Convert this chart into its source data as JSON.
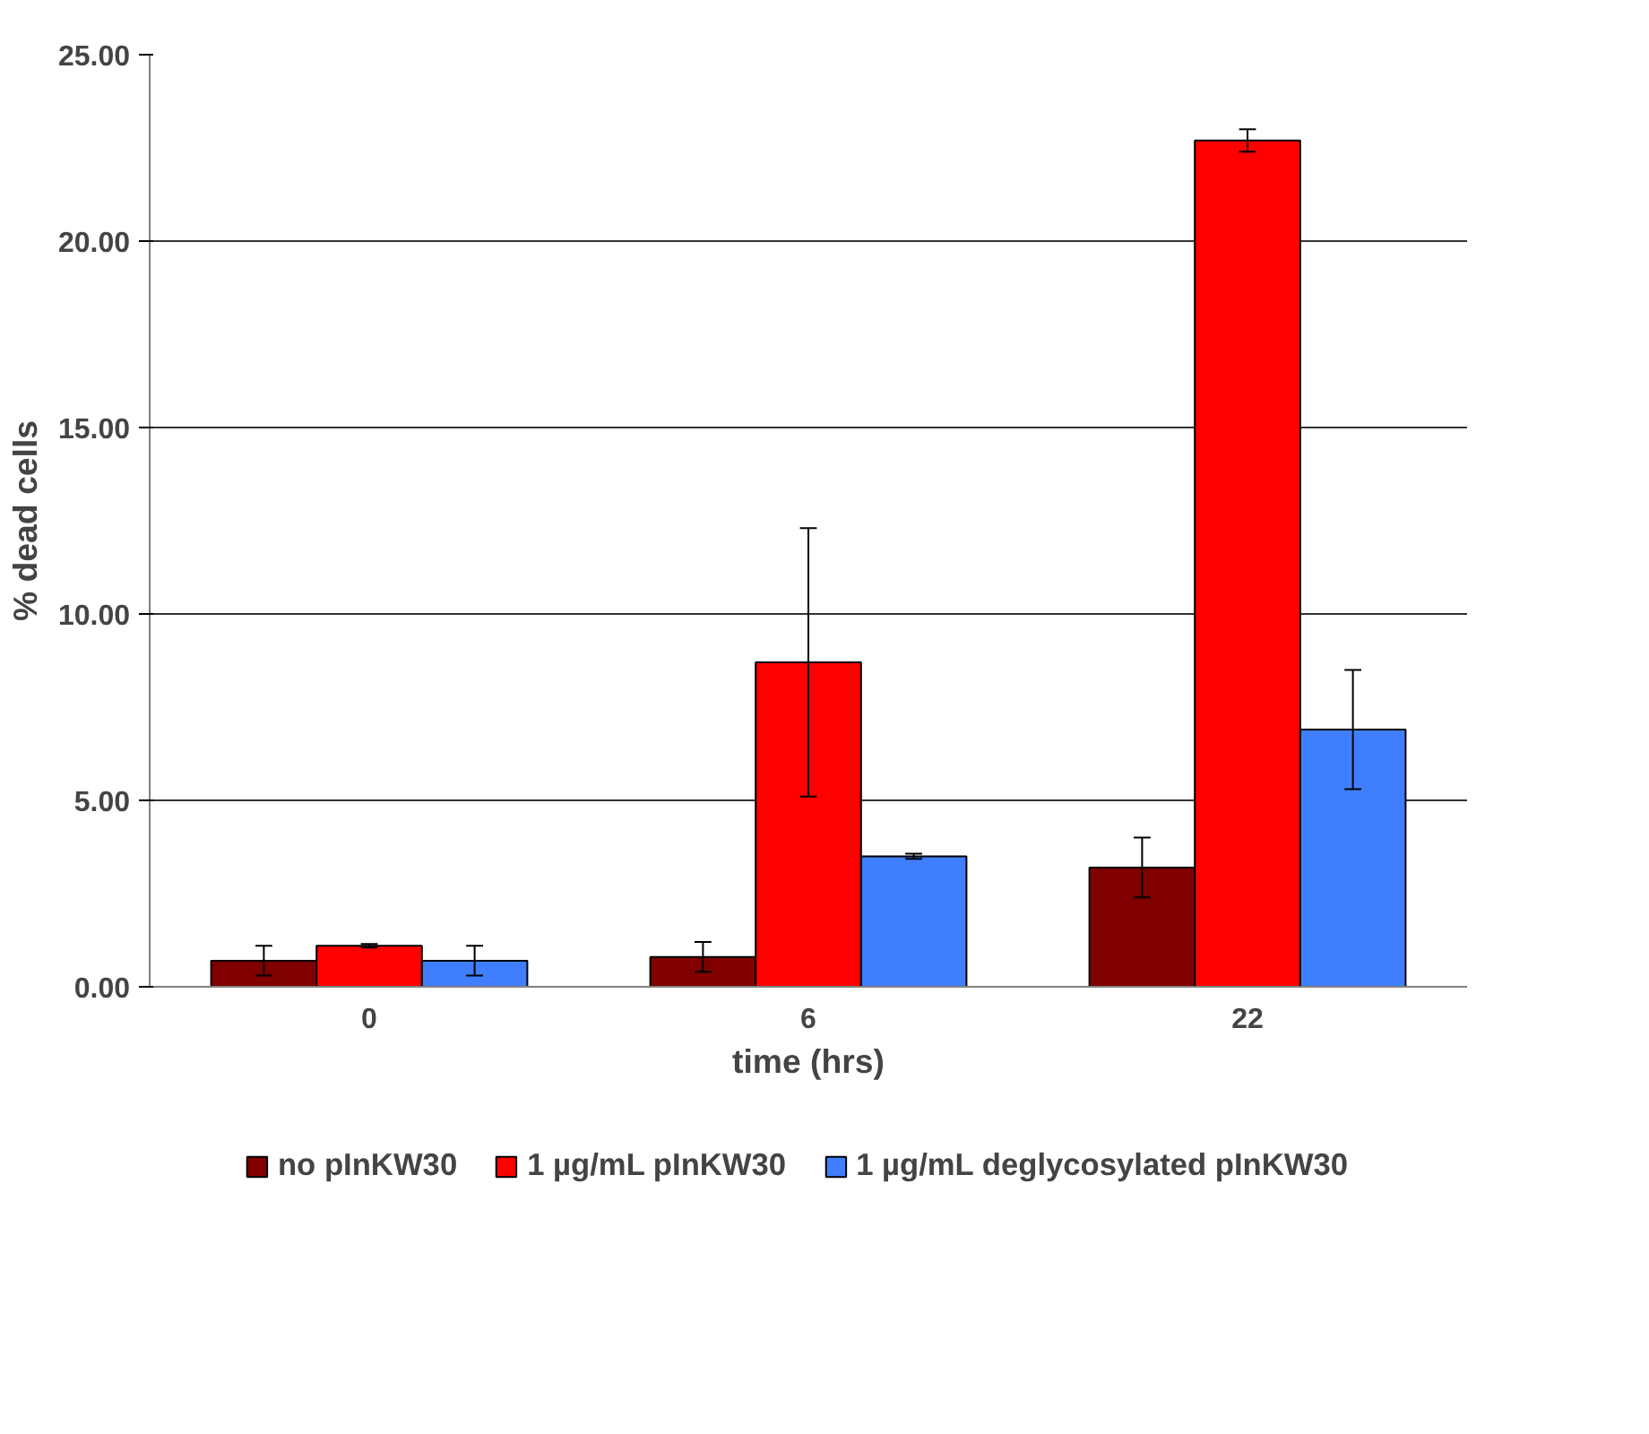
{
  "chart_data": {
    "type": "bar",
    "xlabel": "time (hrs)",
    "ylabel": "% dead cells",
    "categories": [
      "0",
      "6",
      "22"
    ],
    "series": [
      {
        "name": "no pInKW30",
        "color": "#800000",
        "values": [
          0.7,
          0.8,
          3.2
        ],
        "errors": [
          0.4,
          0.4,
          0.8
        ]
      },
      {
        "name": "1 µg/mL pInKW30",
        "color": "#ff0000",
        "values": [
          1.1,
          8.7,
          22.7
        ],
        "errors": [
          0.05,
          3.6,
          0.3
        ]
      },
      {
        "name": "1 µg/mL deglycosylated pInKW30",
        "color": "#3f7fff",
        "values": [
          0.7,
          3.5,
          6.9
        ],
        "errors": [
          0.4,
          0.07,
          1.6
        ]
      }
    ],
    "ylim": [
      0,
      25
    ],
    "yticks": [
      {
        "value": 0,
        "label": "0.00"
      },
      {
        "value": 5,
        "label": "5.00"
      },
      {
        "value": 10,
        "label": "10.00"
      },
      {
        "value": 15,
        "label": "15.00"
      },
      {
        "value": 20,
        "label": "20.00"
      },
      {
        "value": 25,
        "label": "25.00"
      }
    ],
    "grid": "y",
    "legend": "bottom"
  }
}
